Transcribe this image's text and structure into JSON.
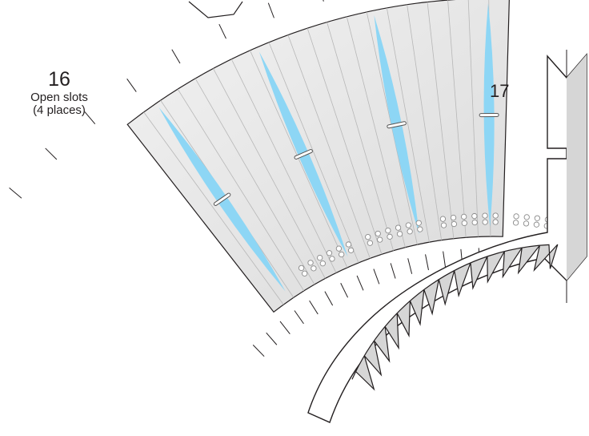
{
  "callouts": {
    "part16": {
      "number": "16",
      "line1": "Open slots",
      "line2": "(4 places)"
    },
    "part17": {
      "number": "17"
    }
  },
  "colors": {
    "slot_fill": "#8dd6f5",
    "panel_fill": "#e3e3e3",
    "panel_stroke": "#8a8a8a",
    "outline": "#231f20",
    "insert_fill": "#d6d6d6"
  }
}
